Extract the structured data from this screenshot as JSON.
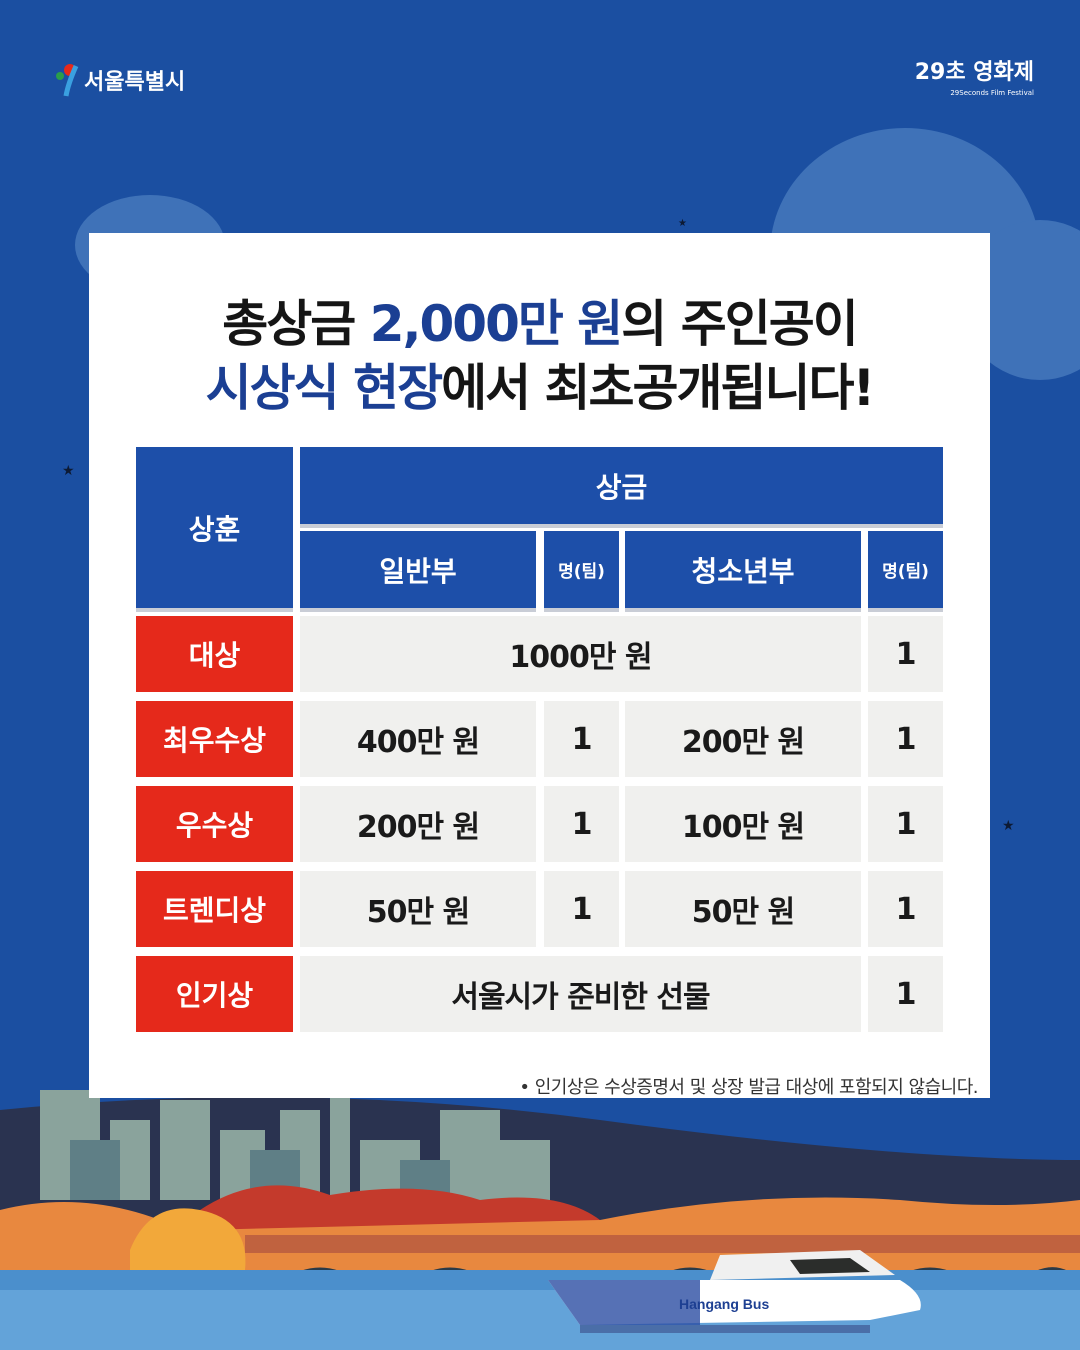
{
  "header": {
    "left_logo": "서울특별시",
    "right_logo": "29초 영화제",
    "right_logo_sub": "29Seconds Film Festival"
  },
  "title": {
    "line1_hl": "총상금 ",
    "line1_accent": "2,000만 원",
    "line1_rest": "의 주인공이",
    "line2_accent": "시상식 현장",
    "line2_rest": "에서 최초공개됩니다!"
  },
  "table": {
    "headers": {
      "award": "상훈",
      "prize": "상금",
      "general": "일반부",
      "count1": "명(팀)",
      "youth": "청소년부",
      "count2": "명(팀)"
    },
    "rows": [
      {
        "award": "대상",
        "merged": "1000만 원",
        "youth_count": "1"
      },
      {
        "award": "최우수상",
        "general": "400만 원",
        "general_count": "1",
        "youth": "200만 원",
        "youth_count": "1"
      },
      {
        "award": "우수상",
        "general": "200만 원",
        "general_count": "1",
        "youth": "100만 원",
        "youth_count": "1"
      },
      {
        "award": "트렌디상",
        "general": "50만 원",
        "general_count": "1",
        "youth": "50만 원",
        "youth_count": "1"
      },
      {
        "award": "인기상",
        "merged": "서울시가 준비한 선물",
        "youth_count": "1"
      }
    ]
  },
  "footnote": "•  인기상은 수상증명서 및 상장 발급 대상에 포함되지 않습니다.",
  "boat_label": "Hangang Bus",
  "colors": {
    "background": "#1b4fa1",
    "header": "#1d4fa9",
    "award": "#e5291b",
    "cell": "#f0f0ee",
    "accent_text": "#1b3f93"
  }
}
